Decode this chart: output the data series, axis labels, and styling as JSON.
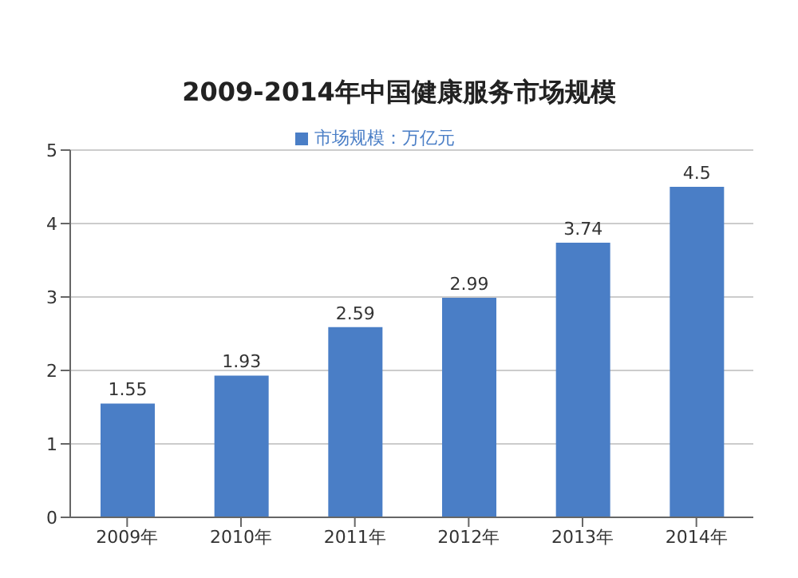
{
  "chart_data": {
    "type": "bar",
    "title": "2009-2014年中国健康服务市场规模",
    "categories": [
      "2009年",
      "2010年",
      "2011年",
      "2012年",
      "2013年",
      "2014年"
    ],
    "series": [
      {
        "name": "市场规模：万亿元",
        "color": "#4a7ec6",
        "values": [
          1.55,
          1.93,
          2.59,
          2.99,
          3.74,
          4.5
        ]
      }
    ],
    "ylim": [
      0,
      5
    ],
    "yticks": [
      0,
      1,
      2,
      3,
      4,
      5
    ],
    "grid": "y",
    "legend": "top",
    "data_labels": true
  }
}
